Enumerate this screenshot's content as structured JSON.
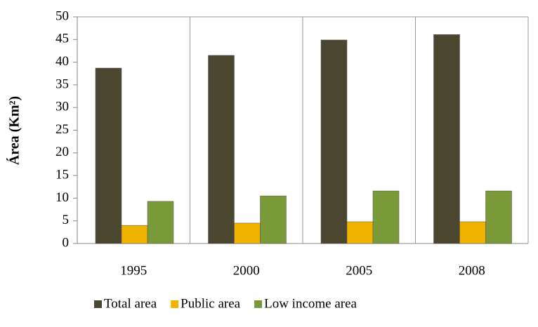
{
  "chart_data": {
    "type": "bar",
    "y_label": "Área (Km²)",
    "categories": [
      "1995",
      "2000",
      "2005",
      "2008"
    ],
    "series": [
      {
        "name": "Total area",
        "color": "#4a4630",
        "values": [
          38.7,
          41.5,
          44.9,
          46.1
        ]
      },
      {
        "name": "Public area",
        "color": "#f0b400",
        "values": [
          4.0,
          4.5,
          4.8,
          4.8
        ]
      },
      {
        "name": "Low income area",
        "color": "#7a9a3a",
        "values": [
          9.3,
          10.5,
          11.6,
          11.6
        ]
      }
    ],
    "ylim": [
      0,
      50
    ],
    "yticks": [
      0,
      5,
      10,
      15,
      20,
      25,
      30,
      35,
      40,
      45,
      50
    ],
    "grid": true
  }
}
